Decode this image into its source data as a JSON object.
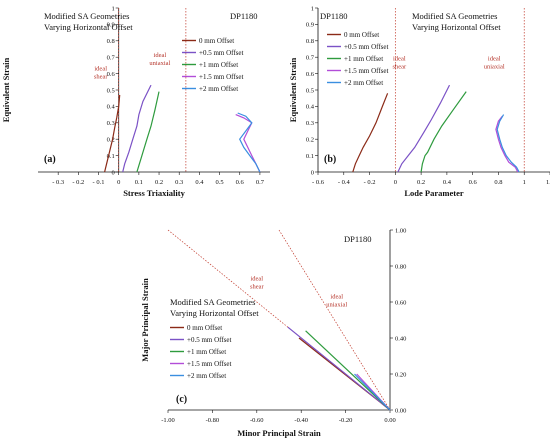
{
  "figure": {
    "material": "DP1180"
  },
  "colors": {
    "0 mm": "#8B2A17",
    "+0.5 mm": "#7B52C6",
    "+1 mm": "#2E9B3E",
    "+1.5 mm": "#B24DD8",
    "+2 mm": "#3A8FE0",
    "ideal": "#C0392B"
  },
  "chart_data": [
    {
      "type": "line",
      "panel_label": "(a)",
      "material": "DP1180",
      "title_lines": [
        "Modified SA Geometries",
        "Varying Horizontal Offset"
      ],
      "xlabel": "Stress Triaxiality",
      "ylabel": "Equivalent Strain",
      "xlim": [
        -0.4,
        0.75
      ],
      "ylim": [
        0,
        1
      ],
      "xticks": [
        -0.3,
        -0.2,
        -0.1,
        0,
        0.1,
        0.2,
        0.3,
        0.4,
        0.5,
        0.6,
        0.7
      ],
      "xtick_labels": [
        "- 0.3",
        "- 0.2",
        "- 0.1",
        "0",
        "0.1",
        "0.2",
        "0.3",
        "0.4",
        "0.5",
        "0.6",
        "0.7"
      ],
      "yticks": [
        0,
        0.1,
        0.2,
        0.3,
        0.4,
        0.5,
        0.6,
        0.7,
        0.8,
        0.9,
        1
      ],
      "ytick_labels": [
        "0",
        "0.1",
        "0.2",
        "0.3",
        "0.4",
        "0.5",
        "0.6",
        "0.7",
        "0.8",
        "0.9",
        "1"
      ],
      "grid": false,
      "legend_position": "top-right",
      "annotations": [
        {
          "text_lines": [
            "ideal",
            "shear"
          ],
          "x": 0.0,
          "y": 0.62
        },
        {
          "text_lines": [
            "ideal",
            "uniaxial"
          ],
          "x": 0.333,
          "y": 0.7
        }
      ],
      "ideal_lines": [
        {
          "x": 0.0
        },
        {
          "x": 0.333
        }
      ],
      "series": [
        {
          "name": "0 mm Offset",
          "key": "0 mm",
          "x": [
            -0.07,
            -0.06,
            -0.05,
            -0.03,
            -0.02,
            -0.01,
            0.0,
            0.005
          ],
          "y": [
            0,
            0.05,
            0.1,
            0.2,
            0.27,
            0.33,
            0.4,
            0.47
          ]
        },
        {
          "name": "+0.5 mm Offset",
          "key": "+0.5 mm",
          "x": [
            0.02,
            0.03,
            0.05,
            0.07,
            0.09,
            0.1,
            0.12,
            0.16
          ],
          "y": [
            0,
            0.05,
            0.12,
            0.2,
            0.28,
            0.35,
            0.43,
            0.53
          ]
        },
        {
          "name": "+1 mm Offset",
          "key": "+1 mm",
          "x": [
            0.09,
            0.1,
            0.11,
            0.12,
            0.14,
            0.16,
            0.18,
            0.2
          ],
          "y": [
            0,
            0.04,
            0.08,
            0.12,
            0.2,
            0.28,
            0.38,
            0.49
          ]
        },
        {
          "name": "+1.5 mm Offset",
          "key": "+1.5 mm",
          "x": [
            0.7,
            0.68,
            0.66,
            0.64,
            0.62,
            0.64,
            0.66,
            0.62,
            0.58
          ],
          "y": [
            0,
            0.05,
            0.1,
            0.15,
            0.2,
            0.25,
            0.3,
            0.33,
            0.35
          ]
        },
        {
          "name": "+2 mm Offset",
          "key": "+2 mm",
          "x": [
            0.7,
            0.68,
            0.65,
            0.62,
            0.6,
            0.63,
            0.66,
            0.63,
            0.59
          ],
          "y": [
            0,
            0.05,
            0.1,
            0.15,
            0.2,
            0.25,
            0.3,
            0.34,
            0.36
          ]
        }
      ]
    },
    {
      "type": "line",
      "panel_label": "(b)",
      "material": "DP1180",
      "title_lines": [
        "Modified SA Geometries",
        "Varying Horizontal Offset"
      ],
      "xlabel": "Lode Parameter",
      "ylabel": "Equivalent Strain",
      "xlim": [
        -0.6,
        1.2
      ],
      "ylim": [
        0,
        1
      ],
      "xticks": [
        -0.6,
        -0.4,
        -0.2,
        0,
        0.2,
        0.4,
        0.6,
        0.8,
        1,
        1.2
      ],
      "xtick_labels": [
        "- 0.6",
        "- 0.4",
        "- 0.2",
        "0",
        "0.2",
        "0.4",
        "0.6",
        "0.8",
        "1",
        "1.2"
      ],
      "yticks": [
        0,
        0.1,
        0.2,
        0.3,
        0.4,
        0.5,
        0.6,
        0.7,
        0.8,
        0.9,
        1
      ],
      "ytick_labels": [
        "0",
        "0.1",
        "0.2",
        "0.3",
        "0.4",
        "0.5",
        "0.6",
        "0.7",
        "0.8",
        "0.9",
        "1"
      ],
      "grid": false,
      "legend_position": "top-left",
      "annotations": [
        {
          "text_lines": [
            "ideal",
            "shear"
          ],
          "x": 0.0,
          "y": 0.68
        },
        {
          "text_lines": [
            "ideal",
            "uniaxial"
          ],
          "x": 1.0,
          "y": 0.68
        }
      ],
      "ideal_lines": [
        {
          "x": 0.0
        },
        {
          "x": 1.0
        }
      ],
      "series": [
        {
          "name": "0 mm Offset",
          "key": "0 mm",
          "x": [
            -0.33,
            -0.31,
            -0.28,
            -0.25,
            -0.2,
            -0.15,
            -0.1,
            -0.06
          ],
          "y": [
            0,
            0.05,
            0.1,
            0.15,
            0.22,
            0.3,
            0.4,
            0.48
          ]
        },
        {
          "name": "+0.5 mm Offset",
          "key": "+0.5 mm",
          "x": [
            0.02,
            0.05,
            0.1,
            0.15,
            0.22,
            0.28,
            0.35,
            0.42
          ],
          "y": [
            0,
            0.05,
            0.1,
            0.15,
            0.24,
            0.32,
            0.42,
            0.53
          ]
        },
        {
          "name": "+1 mm Offset",
          "key": "+1 mm",
          "x": [
            0.2,
            0.21,
            0.23,
            0.25,
            0.3,
            0.36,
            0.45,
            0.55
          ],
          "y": [
            0,
            0.05,
            0.1,
            0.12,
            0.2,
            0.28,
            0.38,
            0.49
          ]
        },
        {
          "name": "+1.5 mm Offset",
          "key": "+1.5 mm",
          "x": [
            0.95,
            0.93,
            0.88,
            0.85,
            0.82,
            0.8,
            0.78,
            0.8,
            0.83
          ],
          "y": [
            0,
            0.03,
            0.06,
            0.1,
            0.15,
            0.2,
            0.26,
            0.31,
            0.34
          ]
        },
        {
          "name": "+2 mm Offset",
          "key": "+2 mm",
          "x": [
            0.96,
            0.94,
            0.9,
            0.86,
            0.83,
            0.81,
            0.79,
            0.81,
            0.84
          ],
          "y": [
            0,
            0.03,
            0.06,
            0.1,
            0.15,
            0.2,
            0.26,
            0.31,
            0.35
          ]
        }
      ]
    },
    {
      "type": "line",
      "panel_label": "(c)",
      "material": "DP1180",
      "title_lines": [
        "Modified SA Geometries",
        "Varying Horizontal Offset"
      ],
      "xlabel": "Minor Principal Strain",
      "ylabel": "Major Principal Strain",
      "xlim": [
        -1.0,
        0
      ],
      "ylim": [
        0,
        1.0
      ],
      "xticks": [
        -1.0,
        -0.8,
        -0.6,
        -0.4,
        -0.2,
        0
      ],
      "xtick_labels": [
        "-1.00",
        "-0.80",
        "-0.60",
        "-0.40",
        "-0.20",
        "0.00"
      ],
      "yticks": [
        0,
        0.2,
        0.4,
        0.6,
        0.8,
        1.0
      ],
      "ytick_labels": [
        "0.00",
        "0.20",
        "0.40",
        "0.60",
        "0.80",
        "1.00"
      ],
      "y_axis_side": "right",
      "grid": false,
      "legend_position": "left",
      "annotations": [
        {
          "text_lines": [
            "ideal",
            "shear"
          ],
          "x": -0.6,
          "y": 0.72
        },
        {
          "text_lines": [
            "ideal",
            "uniaxial"
          ],
          "x": -0.24,
          "y": 0.62
        }
      ],
      "ideal_lines": [
        {
          "x": [
            -1.0,
            0
          ],
          "y": [
            1.0,
            0
          ]
        },
        {
          "x": [
            -0.5,
            0
          ],
          "y": [
            1.0,
            0
          ]
        }
      ],
      "series": [
        {
          "name": "0 mm Offset",
          "key": "0 mm",
          "x": [
            0,
            -0.41
          ],
          "y": [
            0,
            0.4
          ]
        },
        {
          "name": "+0.5 mm Offset",
          "key": "+0.5 mm",
          "x": [
            0,
            -0.46
          ],
          "y": [
            0,
            0.46
          ]
        },
        {
          "name": "+1 mm Offset",
          "key": "+1 mm",
          "x": [
            0,
            -0.38
          ],
          "y": [
            0,
            0.44
          ]
        },
        {
          "name": "+1.5 mm Offset",
          "key": "+1.5 mm",
          "x": [
            0,
            -0.15
          ],
          "y": [
            0,
            0.2
          ]
        },
        {
          "name": "+2 mm Offset",
          "key": "+2 mm",
          "x": [
            0,
            -0.16
          ],
          "y": [
            0,
            0.2
          ]
        }
      ]
    }
  ]
}
